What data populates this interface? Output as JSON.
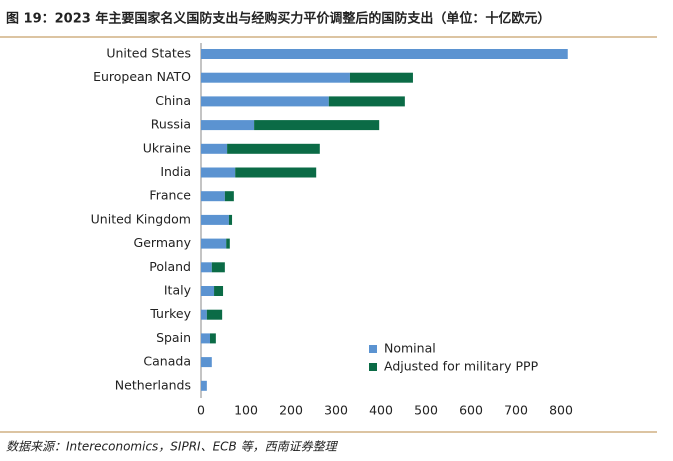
{
  "chart_data": {
    "type": "stacked-barh",
    "title": "图 19：2023 年主要国家名义国防支出与经购买力平价调整后的国防支出（单位：十亿欧元）",
    "source": "数据来源：Intereconomics，SIPRI、ECB 等，西南证券整理",
    "categories": [
      "United States",
      "European NATO",
      "China",
      "Russia",
      "Ukraine",
      "India",
      "France",
      "United Kingdom",
      "Germany",
      "Poland",
      "Italy",
      "Turkey",
      "Spain",
      "Canada",
      "Netherlands"
    ],
    "series": [
      {
        "name": "Nominal",
        "color": "#5b93d1",
        "values": [
          815,
          331,
          284,
          118,
          58,
          76,
          53,
          62,
          56,
          24,
          29,
          13,
          20,
          24,
          13
        ]
      },
      {
        "name": "Adjusted for military PPP",
        "color": "#0b6b46",
        "values": [
          0,
          140,
          169,
          278,
          206,
          180,
          20,
          7,
          8,
          29,
          20,
          34,
          13,
          0,
          0
        ]
      }
    ],
    "xlim": [
      0,
      800
    ],
    "xticks": [
      0,
      100,
      200,
      300,
      400,
      500,
      600,
      700,
      800
    ]
  }
}
